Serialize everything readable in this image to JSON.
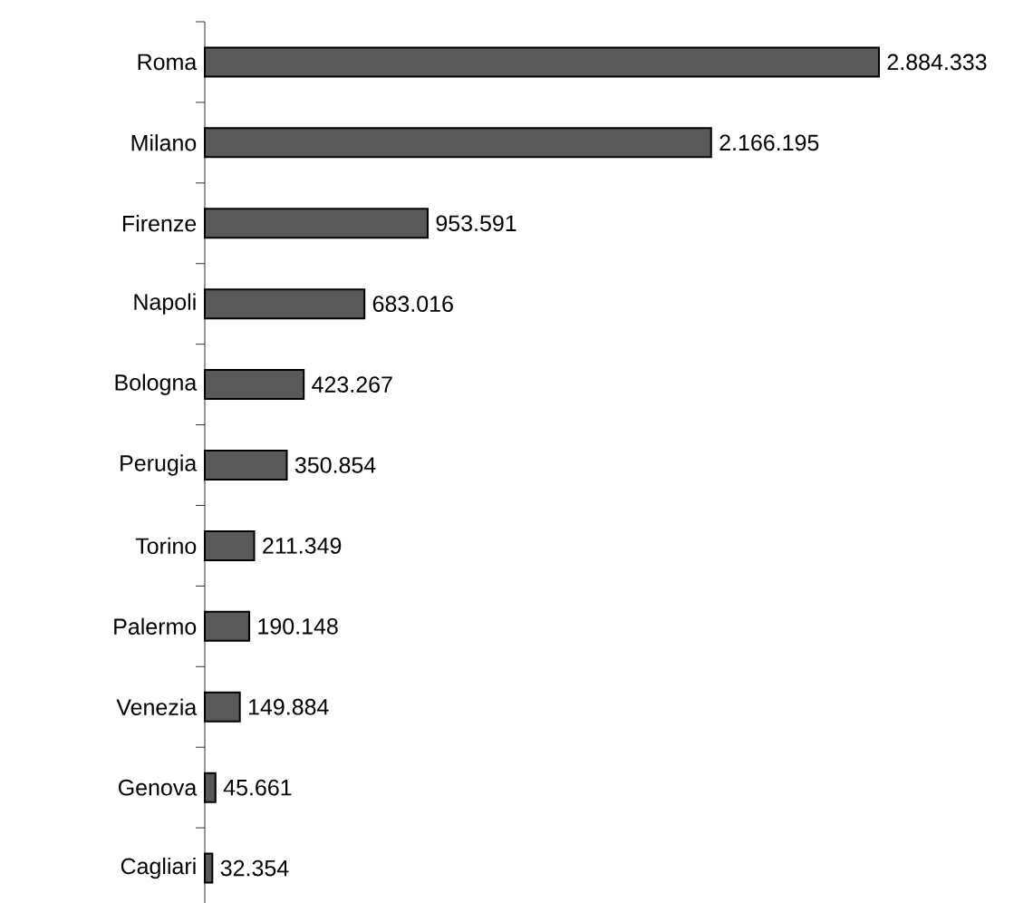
{
  "chart_data": {
    "type": "bar",
    "orientation": "horizontal",
    "categories": [
      "Roma",
      "Milano",
      "Firenze",
      "Napoli",
      "Bologna",
      "Perugia",
      "Torino",
      "Palermo",
      "Venezia",
      "Genova",
      "Cagliari"
    ],
    "values": [
      2884333,
      2166195,
      953591,
      683016,
      423267,
      350854,
      211349,
      190148,
      149884,
      45661,
      32354
    ],
    "value_labels": [
      "2.884.333",
      "2.166.195",
      "953.591",
      "683.016",
      "423.267",
      "350.854",
      "211.349",
      "190.148",
      "149.884",
      "45.661",
      "32.354"
    ],
    "color": "#595959"
  }
}
